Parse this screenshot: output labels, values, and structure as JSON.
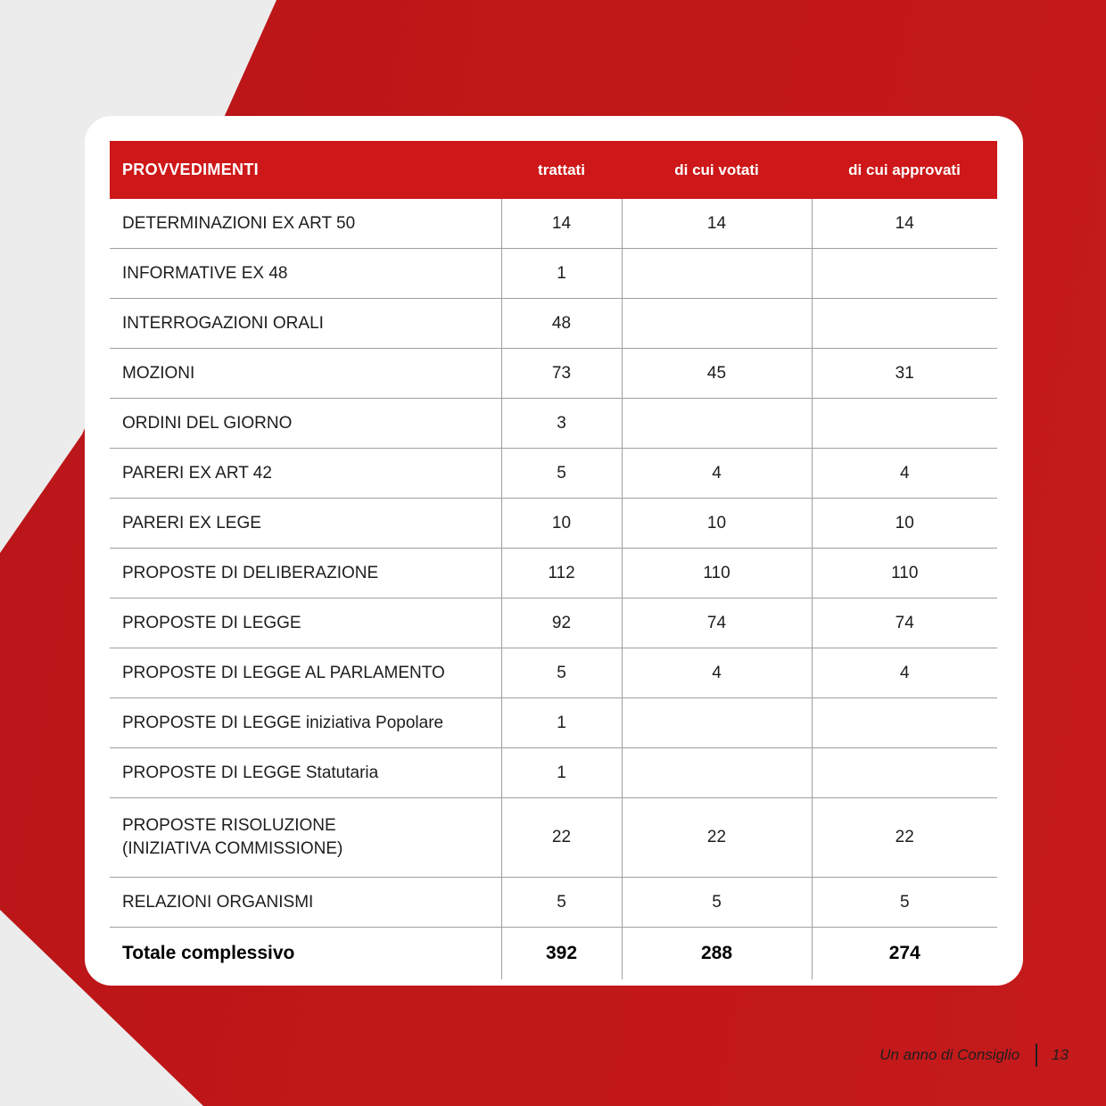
{
  "colors": {
    "background_gray": "#ececec",
    "background_red": "#c01717",
    "table_header_red": "#cd1718",
    "separator_gray": "#9f9f9f",
    "text_dark": "#1d1d1b",
    "header_text": "#ffffff"
  },
  "table": {
    "headers": {
      "col0": "PROVVEDIMENTI",
      "col1": "trattati",
      "col2": "di cui votati",
      "col3": "di cui approvati"
    },
    "rows": [
      {
        "label": "DETERMINAZIONI EX ART 50",
        "trattati": "14",
        "votati": "14",
        "approvati": "14"
      },
      {
        "label": "INFORMATIVE EX 48",
        "trattati": "1",
        "votati": "",
        "approvati": ""
      },
      {
        "label": "INTERROGAZIONI ORALI",
        "trattati": "48",
        "votati": "",
        "approvati": ""
      },
      {
        "label": "MOZIONI",
        "trattati": "73",
        "votati": "45",
        "approvati": "31"
      },
      {
        "label": "ORDINI DEL GIORNO",
        "trattati": "3",
        "votati": "",
        "approvati": ""
      },
      {
        "label": "PARERI EX ART 42",
        "trattati": "5",
        "votati": "4",
        "approvati": "4"
      },
      {
        "label": "PARERI EX LEGE",
        "trattati": "10",
        "votati": "10",
        "approvati": "10"
      },
      {
        "label": "PROPOSTE DI DELIBERAZIONE",
        "trattati": "112",
        "votati": "110",
        "approvati": "110"
      },
      {
        "label": "PROPOSTE DI LEGGE",
        "trattati": "92",
        "votati": "74",
        "approvati": "74"
      },
      {
        "label": "PROPOSTE DI LEGGE AL PARLAMENTO",
        "trattati": "5",
        "votati": "4",
        "approvati": "4"
      },
      {
        "label": "PROPOSTE DI LEGGE iniziativa Popolare",
        "trattati": "1",
        "votati": "",
        "approvati": ""
      },
      {
        "label": "PROPOSTE DI LEGGE Statutaria",
        "trattati": "1",
        "votati": "",
        "approvati": ""
      },
      {
        "label": "PROPOSTE RISOLUZIONE",
        "label_line2": "(INIZIATIVA  COMMISSIONE)",
        "trattati": "22",
        "votati": "22",
        "approvati": "22"
      },
      {
        "label": "RELAZIONI ORGANISMI",
        "trattati": "5",
        "votati": "5",
        "approvati": "5"
      }
    ],
    "total": {
      "label": "Totale complessivo",
      "trattati": "392",
      "votati": "288",
      "approvati": "274"
    }
  },
  "page": {
    "footer": {
      "booklet_title": "Un anno di Consiglio",
      "page_number": "13"
    }
  }
}
